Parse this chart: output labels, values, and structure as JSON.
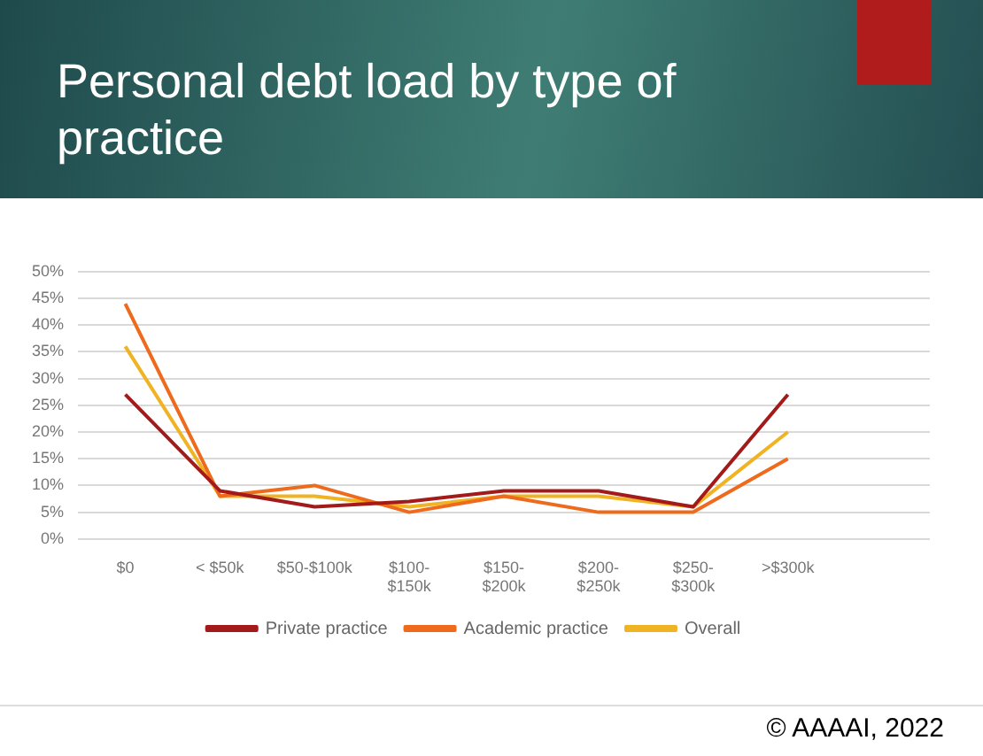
{
  "chart_data": {
    "type": "line",
    "title": "Personal debt load by type of practice",
    "categories": [
      "$0",
      "< $50k",
      "$50-$100k",
      "$100-\n$150k",
      "$150-\n$200k",
      "$200-\n$250k",
      "$250-\n$300k",
      ">$300k",
      null
    ],
    "series": [
      {
        "name": "Private practice",
        "color": "#a31a1a",
        "values": [
          27,
          9,
          6,
          7,
          9,
          9,
          6,
          27,
          null
        ]
      },
      {
        "name": "Academic practice",
        "color": "#ee6a1c",
        "values": [
          44,
          8,
          10,
          5,
          8,
          5,
          5,
          15,
          null
        ]
      },
      {
        "name": "Overall",
        "color": "#f0b323",
        "values": [
          36,
          8,
          8,
          6,
          8,
          8,
          6,
          20,
          null
        ]
      }
    ],
    "ylim": [
      0,
      50
    ],
    "yticks": [
      {
        "value": 0,
        "label": "0%"
      },
      {
        "value": 5,
        "label": "5%"
      },
      {
        "value": 10,
        "label": "10%"
      },
      {
        "value": 15,
        "label": "15%"
      },
      {
        "value": 20,
        "label": "20%"
      },
      {
        "value": 25,
        "label": "25%"
      },
      {
        "value": 30,
        "label": "30%"
      },
      {
        "value": 35,
        "label": "35%"
      },
      {
        "value": 40,
        "label": "40%"
      },
      {
        "value": 45,
        "label": "45%"
      },
      {
        "value": 50,
        "label": "50%"
      }
    ],
    "grid": "y",
    "legend": "bottom",
    "marker": "none",
    "line_style": "solid",
    "annotations": [
      "© AAAAI, 2022"
    ]
  }
}
